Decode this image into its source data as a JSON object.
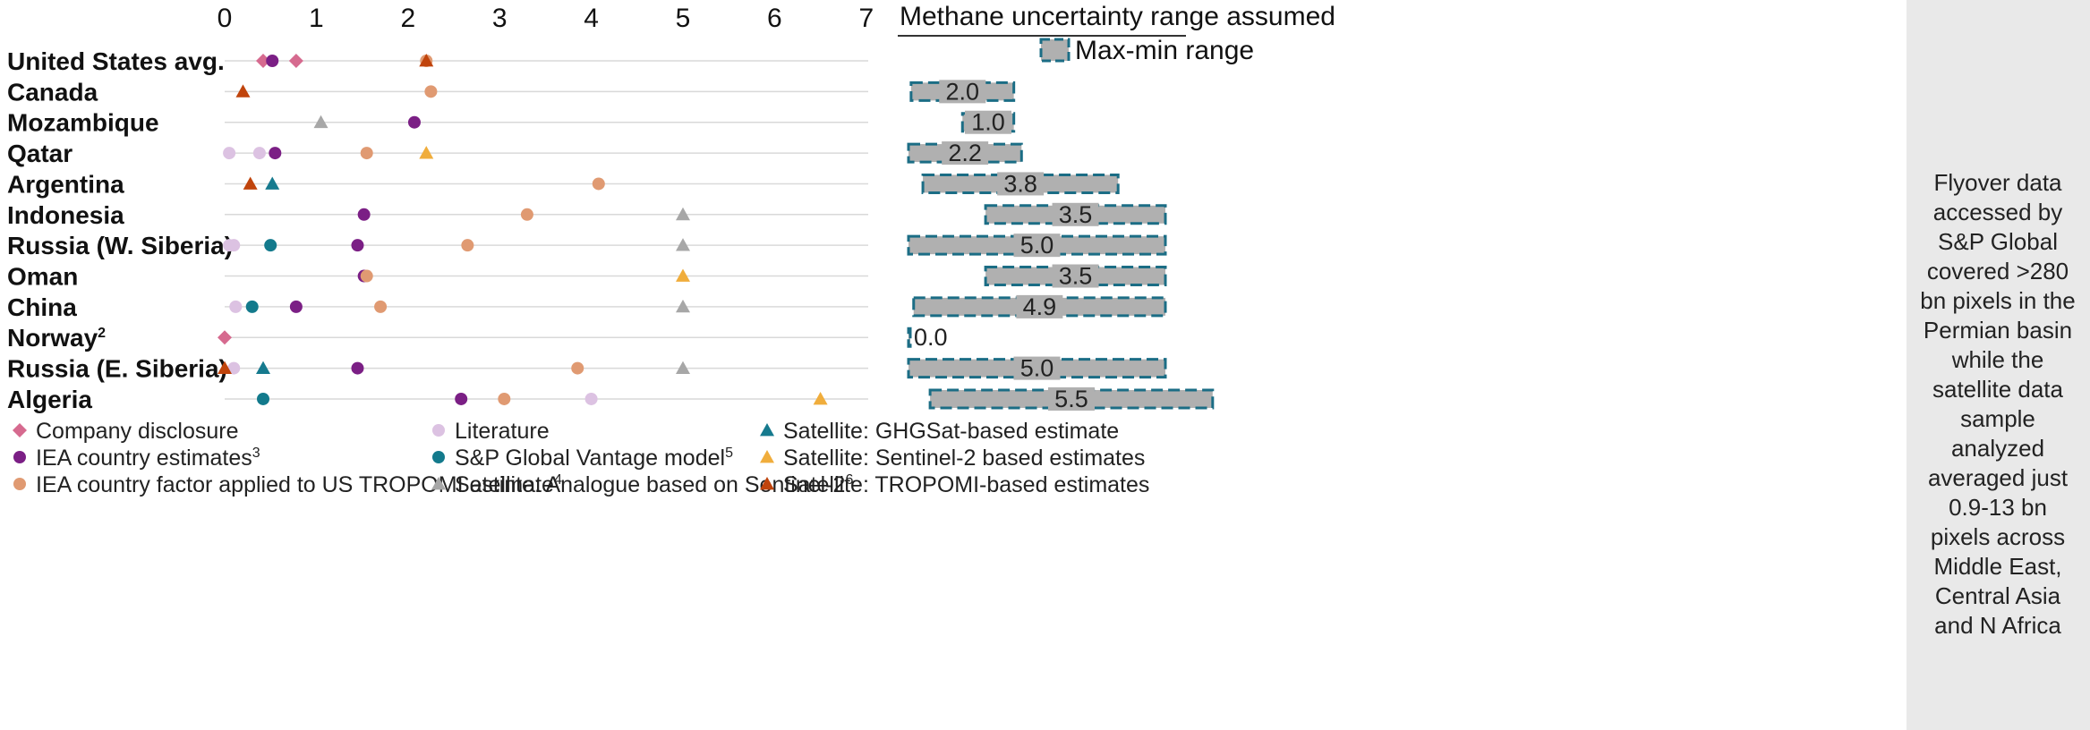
{
  "chart_data": {
    "type": "scatter",
    "x_ticks": [
      "0",
      "1",
      "2",
      "3",
      "4",
      "5",
      "6",
      "7"
    ],
    "xlim": [
      0,
      7
    ],
    "categories": [
      {
        "name": "United States avg.",
        "sup": ""
      },
      {
        "name": "Canada",
        "sup": ""
      },
      {
        "name": "Mozambique",
        "sup": ""
      },
      {
        "name": "Qatar",
        "sup": ""
      },
      {
        "name": "Argentina",
        "sup": ""
      },
      {
        "name": "Indonesia",
        "sup": ""
      },
      {
        "name": "Russia (W. Siberia)",
        "sup": ""
      },
      {
        "name": "Oman",
        "sup": ""
      },
      {
        "name": "China",
        "sup": ""
      },
      {
        "name": "Norway",
        "sup": "2"
      },
      {
        "name": "Russia (E. Siberia)",
        "sup": ""
      },
      {
        "name": "Algeria",
        "sup": ""
      }
    ],
    "series": [
      {
        "key": "company",
        "name": "Company disclosure",
        "sup": "",
        "marker": "diamond",
        "color": "#d66a8f",
        "points": [
          {
            "row": 0,
            "x": 0.42
          },
          {
            "row": 0,
            "x": 0.78
          },
          {
            "row": 9,
            "x": 0.0
          }
        ]
      },
      {
        "key": "iea",
        "name": "IEA country estimates",
        "sup": "3",
        "marker": "circle",
        "color": "#7b1f85",
        "points": [
          {
            "row": 0,
            "x": 0.52
          },
          {
            "row": 2,
            "x": 2.07
          },
          {
            "row": 3,
            "x": 0.55
          },
          {
            "row": 5,
            "x": 1.52
          },
          {
            "row": 6,
            "x": 1.45
          },
          {
            "row": 7,
            "x": 1.52
          },
          {
            "row": 8,
            "x": 0.78
          },
          {
            "row": 10,
            "x": 1.45
          },
          {
            "row": 11,
            "x": 2.58
          }
        ]
      },
      {
        "key": "iea_tropomi",
        "name": "IEA country factor applied to US TROPOMI estimate",
        "sup": "4",
        "marker": "circle",
        "color": "#e09a72",
        "points": [
          {
            "row": 0,
            "x": 2.2
          },
          {
            "row": 1,
            "x": 2.25
          },
          {
            "row": 3,
            "x": 1.55
          },
          {
            "row": 4,
            "x": 4.08
          },
          {
            "row": 5,
            "x": 3.3
          },
          {
            "row": 6,
            "x": 2.65
          },
          {
            "row": 7,
            "x": 1.55
          },
          {
            "row": 8,
            "x": 1.7
          },
          {
            "row": 10,
            "x": 3.85
          },
          {
            "row": 11,
            "x": 3.05
          }
        ]
      },
      {
        "key": "literature",
        "name": "Literature",
        "sup": "",
        "marker": "circle",
        "color": "#dcc2e2",
        "points": [
          {
            "row": 3,
            "x": 0.05
          },
          {
            "row": 3,
            "x": 0.38
          },
          {
            "row": 6,
            "x": 0.05
          },
          {
            "row": 6,
            "x": 0.1
          },
          {
            "row": 8,
            "x": 0.12
          },
          {
            "row": 10,
            "x": 0.1
          },
          {
            "row": 11,
            "x": 4.0
          }
        ]
      },
      {
        "key": "sp_model",
        "name": "S&P Global Vantage model",
        "sup": "5",
        "marker": "circle",
        "color": "#137a8c",
        "points": [
          {
            "row": 6,
            "x": 0.5
          },
          {
            "row": 8,
            "x": 0.3
          },
          {
            "row": 11,
            "x": 0.42
          }
        ]
      },
      {
        "key": "analogue",
        "name": "Satellite: Analogue based on Sentinel-2",
        "sup": "6",
        "marker": "triangle",
        "color": "#a7a7a7",
        "points": [
          {
            "row": 2,
            "x": 1.05
          },
          {
            "row": 5,
            "x": 5.0
          },
          {
            "row": 6,
            "x": 5.0
          },
          {
            "row": 8,
            "x": 5.0
          },
          {
            "row": 10,
            "x": 5.0
          }
        ]
      },
      {
        "key": "ghgsat",
        "name": "Satellite: GHGSat-based estimate",
        "sup": "",
        "marker": "triangle",
        "color": "#167a8e",
        "points": [
          {
            "row": 4,
            "x": 0.52
          },
          {
            "row": 10,
            "x": 0.42
          }
        ]
      },
      {
        "key": "sentinel2",
        "name": "Satellite: Sentinel-2 based estimates",
        "sup": "",
        "marker": "triangle",
        "color": "#f0ad3c",
        "points": [
          {
            "row": 3,
            "x": 2.2
          },
          {
            "row": 7,
            "x": 5.0
          },
          {
            "row": 11,
            "x": 6.5
          }
        ]
      },
      {
        "key": "tropomi",
        "name": "Satellite: TROPOMI-based estimates",
        "sup": "",
        "marker": "triangle",
        "color": "#c0440c",
        "points": [
          {
            "row": 0,
            "x": 2.2
          },
          {
            "row": 1,
            "x": 0.2
          },
          {
            "row": 4,
            "x": 0.28
          },
          {
            "row": 10,
            "x": 0.0
          }
        ]
      }
    ],
    "range_panel": {
      "title": "Methane uncertainty range assumed",
      "legend_label": "Max-min range",
      "bars": [
        {
          "row": 1,
          "min": 0.05,
          "max": 2.05,
          "label": "2.0"
        },
        {
          "row": 2,
          "min": 1.05,
          "max": 2.05,
          "label": "1.0"
        },
        {
          "row": 3,
          "min": 0.0,
          "max": 2.2,
          "label": "2.2"
        },
        {
          "row": 4,
          "min": 0.28,
          "max": 4.08,
          "label": "3.8"
        },
        {
          "row": 5,
          "min": 1.5,
          "max": 5.0,
          "label": "3.5"
        },
        {
          "row": 6,
          "min": 0.0,
          "max": 5.0,
          "label": "5.0"
        },
        {
          "row": 7,
          "min": 1.5,
          "max": 5.0,
          "label": "3.5"
        },
        {
          "row": 8,
          "min": 0.1,
          "max": 5.0,
          "label": "4.9"
        },
        {
          "row": 9,
          "min": 0.0,
          "max": 0.0,
          "label": "0.0"
        },
        {
          "row": 10,
          "min": 0.0,
          "max": 5.0,
          "label": "5.0"
        },
        {
          "row": 11,
          "min": 0.42,
          "max": 5.92,
          "label": "5.5"
        }
      ]
    },
    "colors": {
      "range_fill": "#b0b0b0",
      "range_stroke": "#1b6d85",
      "gridline": "#d9d9d9"
    }
  },
  "side_note": "Flyover data accessed by S&P Global covered >280 bn pixels in the Permian basin while the satellite data sample analyzed averaged just 0.9-13 bn pixels across Middle East, Central Asia and N Africa"
}
